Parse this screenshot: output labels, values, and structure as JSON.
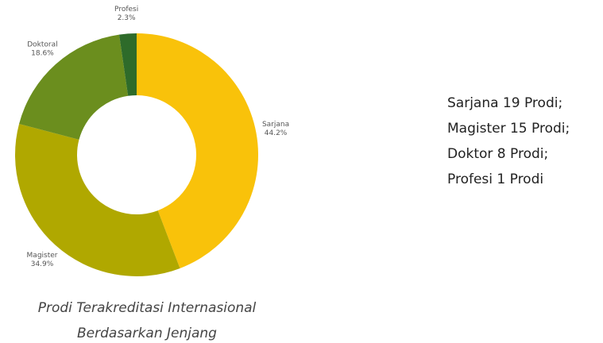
{
  "chart_data": {
    "type": "donut",
    "categories": [
      "Sarjana",
      "Magister",
      "Doktoral",
      "Profesi"
    ],
    "values": [
      44.2,
      34.9,
      18.6,
      2.3
    ],
    "value_labels": [
      "44.2%",
      "34.9%",
      "18.6%",
      "2.3%"
    ],
    "colors": [
      "#f9c20a",
      "#b0a800",
      "#6b8e1e",
      "#2e6b2a"
    ],
    "caption": [
      "Prodi Terakreditasi Internasional",
      "Berdasarkan Jenjang"
    ]
  },
  "side_text": [
    "Sarjana 19 Prodi;",
    "Magister 15 Prodi;",
    "Doktor 8 Prodi;",
    "Profesi 1 Prodi"
  ]
}
